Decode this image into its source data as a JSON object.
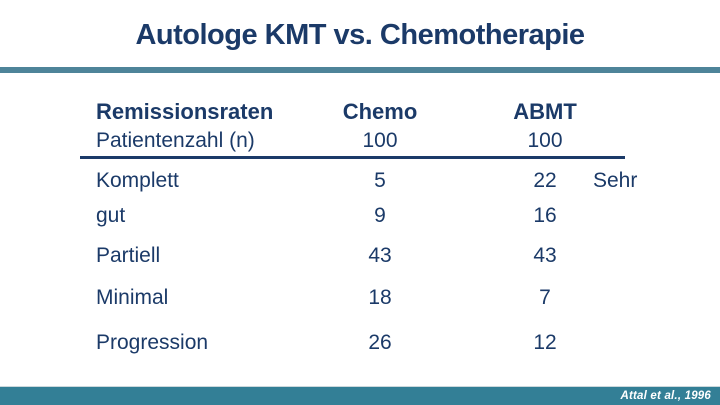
{
  "slide": {
    "title": "Autologe KMT vs. Chemotherapie",
    "footer_citation": "Attal et al., 1996"
  },
  "table": {
    "header": {
      "label": "Remissionsraten",
      "chemo": "Chemo",
      "abmt": "ABMT"
    },
    "subheader": {
      "label": "Patientenzahl (n)",
      "chemo": "100",
      "abmt": "100"
    },
    "rows": [
      {
        "label": "Komplett",
        "chemo": "5",
        "abmt": "22",
        "note": "Sehr"
      },
      {
        "label": "gut",
        "chemo": "9",
        "abmt": "16",
        "note": ""
      },
      {
        "label": "Partiell",
        "chemo": "43",
        "abmt": "43",
        "note": ""
      },
      {
        "label": "Minimal",
        "chemo": "18",
        "abmt": "7",
        "note": ""
      },
      {
        "label": "Progression",
        "chemo": "26",
        "abmt": "12",
        "note": ""
      }
    ]
  },
  "colors": {
    "navy": "#1b3a68",
    "teal-rule": "#4e8499",
    "teal-footer": "#337f96"
  }
}
